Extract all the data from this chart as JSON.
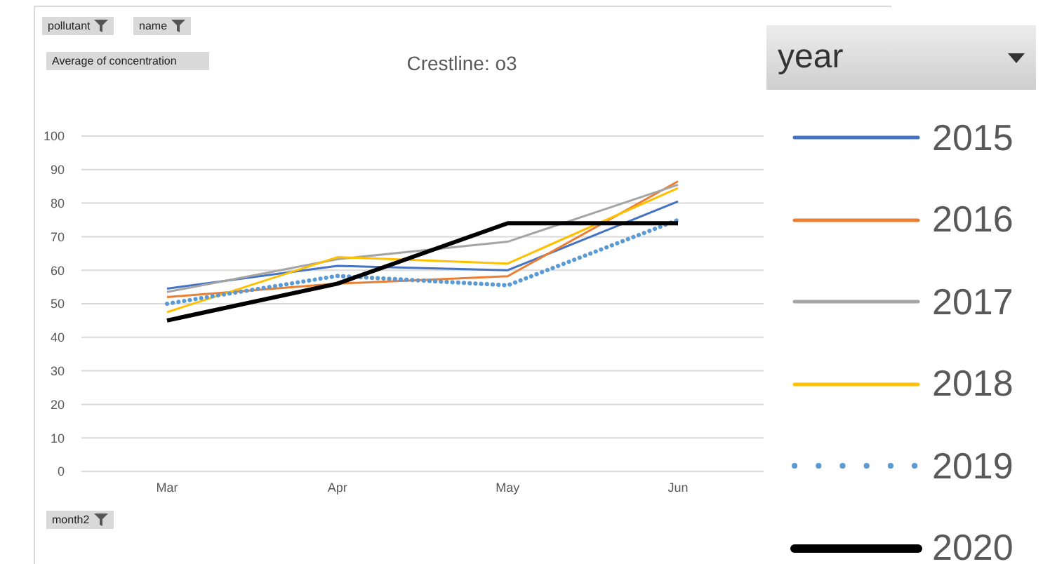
{
  "chart_data": {
    "type": "line",
    "title": "Crestline: o3",
    "legend_title": "year",
    "annotations": [
      "pollutant",
      "name",
      "Average of concentration",
      "month2"
    ],
    "categories": [
      "Mar",
      "Apr",
      "May",
      "Jun"
    ],
    "series": [
      {
        "name": "2015",
        "color": "#4472c4",
        "values": [
          54.5,
          61.3,
          60,
          80.5
        ]
      },
      {
        "name": "2016",
        "color": "#ed7d31",
        "values": [
          52,
          56,
          58.2,
          86.5
        ]
      },
      {
        "name": "2017",
        "color": "#a5a5a5",
        "values": [
          53.5,
          63.3,
          68.5,
          85.5
        ]
      },
      {
        "name": "2018",
        "color": "#ffc000",
        "values": [
          47.5,
          63.9,
          62,
          84.5
        ]
      },
      {
        "name": "2019",
        "color": "#5b9bd5",
        "values": [
          50,
          58.3,
          55.5,
          75
        ],
        "line_style": "dotted"
      },
      {
        "name": "2020",
        "color": "#000000",
        "values": [
          45,
          56,
          74,
          74
        ]
      }
    ],
    "ylim": [
      0,
      100
    ],
    "yticks": [
      0,
      10,
      20,
      30,
      40,
      50,
      60,
      70,
      80,
      90,
      100
    ],
    "grid": "y",
    "legend": "right",
    "marker": "none",
    "line_style": "solid"
  }
}
